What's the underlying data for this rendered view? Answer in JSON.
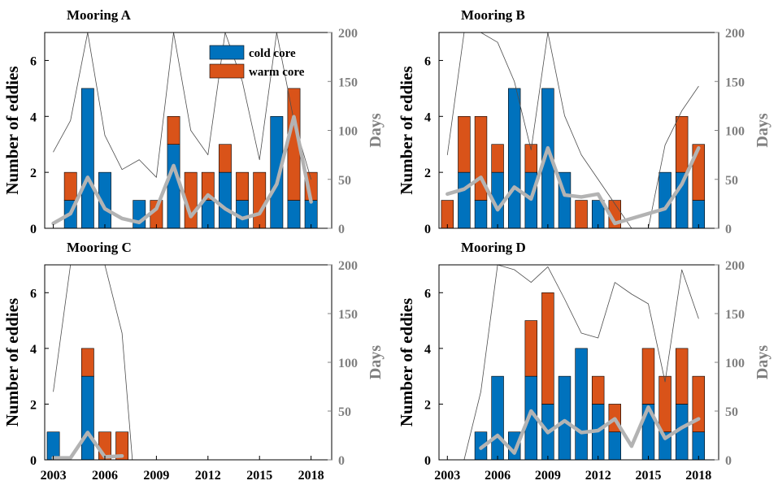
{
  "chart_data": [
    {
      "type": "bar",
      "title": "Mooring A",
      "ylabel": "Number of eddies",
      "y2label": "Days",
      "ylim": [
        0,
        7
      ],
      "y2lim": [
        0,
        200
      ],
      "yticks": [
        0,
        2,
        4,
        6
      ],
      "y2ticks": [
        0,
        50,
        100,
        150,
        200
      ],
      "xticks": [
        "2003",
        "2006",
        "2009",
        "2012",
        "2015",
        "2018"
      ],
      "legend": {
        "position": "top-center",
        "entries": [
          "cold core",
          "warm core"
        ]
      },
      "years": [
        2004,
        2005,
        2006,
        2007,
        2008,
        2009,
        2010,
        2011,
        2012,
        2013,
        2014,
        2015,
        2016,
        2017,
        2018
      ],
      "series": [
        {
          "name": "cold core",
          "values": [
            1,
            5,
            2,
            0,
            1,
            0,
            3,
            0,
            1,
            2,
            1,
            0,
            4,
            1,
            1
          ]
        },
        {
          "name": "warm core",
          "values": [
            1,
            0,
            0,
            0,
            0,
            1,
            1,
            2,
            1,
            1,
            1,
            2,
            0,
            4,
            1
          ]
        }
      ],
      "days_thin": {
        "x": [
          2003,
          2004,
          2005,
          2006,
          2007,
          2008,
          2009,
          2010,
          2011,
          2012,
          2013,
          2014,
          2015,
          2016,
          2017,
          2018
        ],
        "values": [
          78,
          110,
          200,
          95,
          60,
          70,
          52,
          200,
          100,
          75,
          200,
          150,
          70,
          200,
          110,
          50
        ]
      },
      "days_thick": {
        "x": [
          2003,
          2004,
          2005,
          2006,
          2007,
          2008,
          2009,
          2010,
          2011,
          2012,
          2013,
          2014,
          2015,
          2016,
          2017,
          2018
        ],
        "values": [
          5,
          15,
          52,
          20,
          10,
          6,
          20,
          64,
          12,
          34,
          20,
          10,
          15,
          45,
          114,
          27
        ]
      }
    },
    {
      "type": "bar",
      "title": "Mooring B",
      "ylabel": "Number of eddies",
      "y2label": "Days",
      "ylim": [
        0,
        7
      ],
      "y2lim": [
        0,
        200
      ],
      "yticks": [
        0,
        2,
        4,
        6
      ],
      "y2ticks": [
        0,
        50,
        100,
        150,
        200
      ],
      "xticks": [
        "2003",
        "2006",
        "2009",
        "2012",
        "2015",
        "2018"
      ],
      "years": [
        2003,
        2004,
        2005,
        2006,
        2007,
        2008,
        2009,
        2010,
        2011,
        2012,
        2013,
        2016,
        2017,
        2018
      ],
      "series": [
        {
          "name": "cold core",
          "values": [
            0,
            2,
            1,
            2,
            5,
            2,
            5,
            2,
            0,
            1,
            0,
            2,
            2,
            1
          ]
        },
        {
          "name": "warm core",
          "values": [
            1,
            2,
            3,
            1,
            0,
            1,
            0,
            0,
            1,
            0,
            1,
            0,
            2,
            2
          ]
        }
      ],
      "days_thin": {
        "x": [
          2003,
          2004,
          2005,
          2006,
          2007,
          2008,
          2009,
          2010,
          2011,
          2012,
          2013,
          2014,
          2015,
          2016,
          2017,
          2018
        ],
        "values": [
          75,
          200,
          200,
          190,
          150,
          80,
          200,
          115,
          75,
          50,
          25,
          0,
          0,
          85,
          120,
          145
        ]
      },
      "days_thick": {
        "x": [
          2003,
          2004,
          2005,
          2006,
          2007,
          2008,
          2009,
          2010,
          2011,
          2012,
          2013,
          2016,
          2017,
          2018
        ],
        "values": [
          35,
          40,
          52,
          19,
          42,
          30,
          82,
          34,
          32,
          35,
          5,
          20,
          45,
          82
        ]
      }
    },
    {
      "type": "bar",
      "title": "Mooring C",
      "ylabel": "Number of eddies",
      "y2label": "Days",
      "ylim": [
        0,
        7
      ],
      "y2lim": [
        0,
        200
      ],
      "yticks": [
        0,
        2,
        4,
        6
      ],
      "y2ticks": [
        0,
        50,
        100,
        150,
        200
      ],
      "xticks": [
        "2003",
        "2006",
        "2009",
        "2012",
        "2015",
        "2018"
      ],
      "years": [
        2003,
        2005,
        2006,
        2007
      ],
      "series": [
        {
          "name": "cold core",
          "values": [
            1,
            3,
            0,
            0
          ]
        },
        {
          "name": "warm core",
          "values": [
            0,
            1,
            1,
            1
          ]
        }
      ],
      "days_thin": {
        "x": [
          2003,
          2004,
          2006,
          2007,
          2007.6
        ],
        "values": [
          70,
          200,
          200,
          130,
          0
        ]
      },
      "days_thick": {
        "x": [
          2003,
          2004,
          2005,
          2006,
          2007
        ],
        "values": [
          2,
          2,
          28,
          3,
          4
        ]
      }
    },
    {
      "type": "bar",
      "title": "Mooring D",
      "ylabel": "Number of eddies",
      "y2label": "Days",
      "ylim": [
        0,
        7
      ],
      "y2lim": [
        0,
        200
      ],
      "yticks": [
        0,
        2,
        4,
        6
      ],
      "y2ticks": [
        0,
        50,
        100,
        150,
        200
      ],
      "xticks": [
        "2003",
        "2006",
        "2009",
        "2012",
        "2015",
        "2018"
      ],
      "years": [
        2005,
        2006,
        2007,
        2008,
        2009,
        2010,
        2011,
        2012,
        2013,
        2014,
        2015,
        2016,
        2017,
        2018
      ],
      "series": [
        {
          "name": "cold core",
          "values": [
            1,
            3,
            1,
            3,
            2,
            3,
            4,
            2,
            1,
            0,
            2,
            1,
            2,
            1
          ]
        },
        {
          "name": "warm core",
          "values": [
            0,
            0,
            0,
            2,
            4,
            0,
            0,
            1,
            1,
            0,
            2,
            2,
            2,
            2
          ]
        }
      ],
      "days_thin": {
        "x": [
          2004,
          2005,
          2006,
          2007,
          2008,
          2009,
          2010,
          2011,
          2012,
          2013,
          2014,
          2015,
          2016,
          2017,
          2018
        ],
        "values": [
          0,
          70,
          200,
          195,
          182,
          198,
          165,
          130,
          125,
          182,
          170,
          160,
          80,
          195,
          145
        ]
      },
      "days_thick": {
        "x": [
          2005,
          2006,
          2007,
          2008,
          2009,
          2010,
          2011,
          2012,
          2013,
          2014,
          2015,
          2016,
          2017,
          2018
        ],
        "values": [
          12,
          25,
          7,
          50,
          28,
          40,
          28,
          30,
          42,
          14,
          54,
          22,
          33,
          42
        ]
      }
    }
  ],
  "colors": {
    "cold": "#0072BD",
    "warm": "#D95319",
    "thin": "#4d4d4d",
    "thick": "#b3b3b3",
    "right_axis": "#808080"
  }
}
